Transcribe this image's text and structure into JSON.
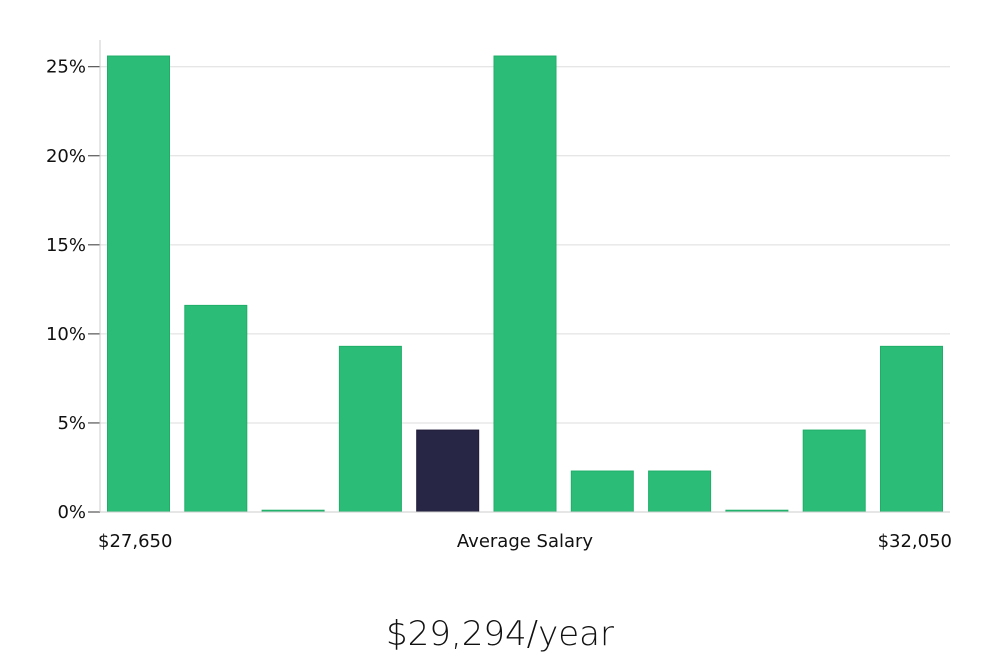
{
  "chart_data": {
    "type": "bar",
    "title": "",
    "xlabel": "Average Salary",
    "ylabel": "",
    "x_range_labels": {
      "min": "$27,650",
      "max": "$32,050"
    },
    "values": [
      25.6,
      11.6,
      0.1,
      9.3,
      4.6,
      25.6,
      2.3,
      2.3,
      0.1,
      4.6,
      9.3
    ],
    "highlight_index": 4,
    "ylim": [
      0,
      26.5
    ],
    "yticks": [
      {
        "value": 0,
        "label": "0%"
      },
      {
        "value": 5,
        "label": "5%"
      },
      {
        "value": 10,
        "label": "10%"
      },
      {
        "value": 15,
        "label": "15%"
      },
      {
        "value": 20,
        "label": "20%"
      },
      {
        "value": 25,
        "label": "25%"
      }
    ],
    "grid": true,
    "legend": "none",
    "colors": {
      "bar": "#2bbd78",
      "bar_stroke": "#1fae68",
      "highlight": "#282645",
      "grid": "#dddddd",
      "axis": "#cccccc"
    }
  },
  "average_salary_caption": "$29,294/year"
}
